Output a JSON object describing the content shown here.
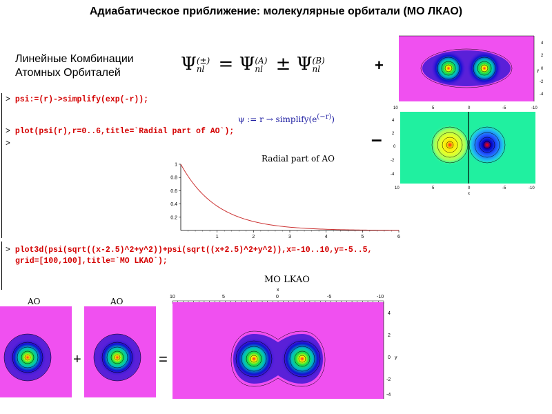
{
  "title": "Адиабатическое приближение: молекулярные орбитали (МО ЛКАО)",
  "lcao": {
    "line1": "Линейные Комбинации",
    "line2": "Атомных Орбиталей"
  },
  "formula": {
    "psi": "Ψ",
    "sup": "(±)",
    "sub": "nl",
    "eq": "=",
    "sup_a": "(A)",
    "sup_b": "(B)",
    "pm": "±"
  },
  "code": {
    "prompt": ">",
    "line1": "psi:=(r)->simplify(exp(-r));",
    "line2": "plot(psi(r),r=0..6,title=`Radial part of AO`);",
    "line3": "plot3d(psi(sqrt((x-2.5)^2+y^2))+psi(sqrt((x+2.5)^2+y^2)),x=-10..10,y=-5..5,",
    "line4": "grid=[100,100],title=`MO LKAO`);"
  },
  "maple_output": {
    "lhs": "ψ := r → simplify(e",
    "exp": "(−r)",
    "close": ")"
  },
  "signs": {
    "plus": "+",
    "minus": "–",
    "plus_small": "+",
    "equals": "="
  },
  "plot_labels": {
    "ao_left": "AO",
    "ao_right": "AO",
    "mo": "MO LKAO"
  },
  "chart_data": {
    "type": "line",
    "title": "Radial part of AO",
    "xlabel": "",
    "ylabel": "",
    "xlim": [
      0,
      6
    ],
    "ylim": [
      0,
      1
    ],
    "x_ticks": [
      1,
      2,
      3,
      4,
      5,
      6
    ],
    "y_ticks": [
      0.2,
      0.4,
      0.6,
      0.8,
      1
    ],
    "function": "exp(-r)",
    "x": [
      0,
      0.5,
      1,
      1.5,
      2,
      2.5,
      3,
      3.5,
      4,
      4.5,
      5,
      5.5,
      6
    ],
    "y": [
      1,
      0.607,
      0.368,
      0.223,
      0.135,
      0.082,
      0.05,
      0.03,
      0.018,
      0.011,
      0.007,
      0.004,
      0.002
    ],
    "grid": false,
    "color": "#cc3333"
  },
  "axes": {
    "mo_x_ticks": [
      "10",
      "5",
      "0",
      "-5",
      "-10"
    ],
    "mo_y_ticks": [
      "4",
      "2",
      "0",
      "-2",
      "-4"
    ],
    "x_label": "x",
    "y_label": "y",
    "top_plus_y_ticks": [
      "4",
      "2",
      "0",
      "-2",
      "-4"
    ],
    "top_minus_x_ticks": [
      "10",
      "5",
      "0",
      "-5",
      "-10"
    ],
    "top_minus_y_ticks": [
      "4",
      "2",
      "0",
      "-2",
      "-4"
    ]
  },
  "colors": {
    "magenta_bg": "#f050f0",
    "green_bg": "#20f0a0",
    "code_red": "#d40000",
    "curve": "#cc3333"
  }
}
